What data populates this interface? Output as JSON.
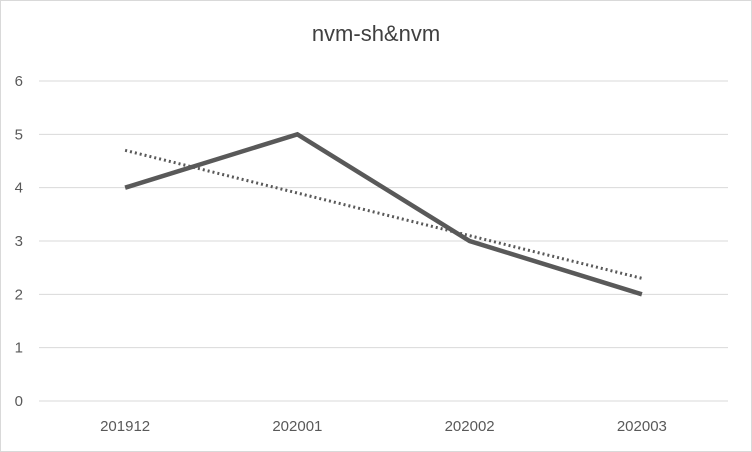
{
  "chart_data": {
    "type": "line",
    "title": "nvm-sh&nvm",
    "xlabel": "",
    "ylabel": "",
    "categories": [
      "201912",
      "202001",
      "202002",
      "202003"
    ],
    "series": [
      {
        "values": [
          4,
          5,
          3,
          2
        ],
        "style": "solid",
        "color": "#595959"
      }
    ],
    "trendline": {
      "type": "linear",
      "values": [
        4.7,
        3.9,
        3.1,
        2.3
      ],
      "style": "dotted",
      "color": "#595959"
    },
    "ylim": [
      0,
      6
    ],
    "yticks": [
      "0",
      "1",
      "2",
      "3",
      "4",
      "5",
      "6"
    ],
    "grid": true,
    "legend": "none"
  }
}
